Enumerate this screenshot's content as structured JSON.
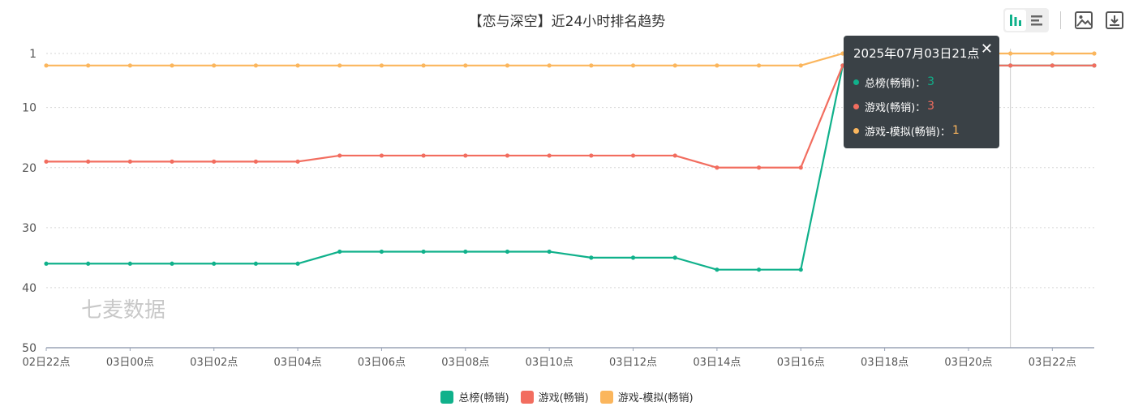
{
  "chart_data": {
    "type": "line",
    "title": "【恋与深空】近24小时排名趋势",
    "x": [
      "02日22点",
      "02日23点",
      "03日00点",
      "03日01点",
      "03日02点",
      "03日03点",
      "03日04点",
      "03日05点",
      "03日06点",
      "03日07点",
      "03日08点",
      "03日09点",
      "03日10点",
      "03日11点",
      "03日12点",
      "03日13点",
      "03日14点",
      "03日15点",
      "03日16点",
      "03日17点",
      "03日18点",
      "03日19点",
      "03日20点",
      "03日21点",
      "03日22点",
      "03日23点"
    ],
    "x_tick_labels": [
      "02日22点",
      "03日00点",
      "03日02点",
      "03日04点",
      "03日06点",
      "03日08点",
      "03日10点",
      "03日12点",
      "03日14点",
      "03日16点",
      "03日18点",
      "03日20点",
      "03日22点"
    ],
    "y_ticks": [
      1,
      10,
      20,
      30,
      40,
      50
    ],
    "ylim": [
      50,
      1
    ],
    "y_inverted": true,
    "grid": "horizontal-dotted",
    "series": [
      {
        "name": "总榜(畅销)",
        "color": "#10b18b",
        "values": [
          36,
          36,
          36,
          36,
          36,
          36,
          36,
          34,
          34,
          34,
          34,
          34,
          34,
          35,
          35,
          35,
          37,
          37,
          37,
          3,
          3,
          3,
          3,
          3,
          3,
          3
        ]
      },
      {
        "name": "游戏(畅销)",
        "color": "#f26d5f",
        "values": [
          19,
          19,
          19,
          19,
          19,
          19,
          19,
          18,
          18,
          18,
          18,
          18,
          18,
          18,
          18,
          18,
          20,
          20,
          20,
          3,
          3,
          3,
          3,
          3,
          3,
          3
        ]
      },
      {
        "name": "游戏-模拟(畅销)",
        "color": "#fbb65d",
        "values": [
          3,
          3,
          3,
          3,
          3,
          3,
          3,
          3,
          3,
          3,
          3,
          3,
          3,
          3,
          3,
          3,
          3,
          3,
          3,
          1,
          1,
          1,
          1,
          1,
          1,
          1
        ]
      }
    ]
  },
  "tooltip": {
    "title": "2025年07月03日21点",
    "close": "✕",
    "rows": [
      {
        "label": "总榜(畅销)：",
        "value": "3",
        "color": "#10b18b"
      },
      {
        "label": "游戏(畅销)：",
        "value": "3",
        "color": "#f26d5f"
      },
      {
        "label": "游戏-模拟(畅销)：",
        "value": "1",
        "color": "#fbb65d"
      }
    ]
  },
  "legend": [
    {
      "label": "总榜(畅销)",
      "color": "#10b18b"
    },
    {
      "label": "游戏(畅销)",
      "color": "#f26d5f"
    },
    {
      "label": "游戏-模拟(畅销)",
      "color": "#fbb65d"
    }
  ],
  "watermark": "七麦数据",
  "toolbar": {
    "icons": [
      "bar-chart-icon",
      "list-icon",
      "image-icon",
      "download-icon"
    ]
  }
}
